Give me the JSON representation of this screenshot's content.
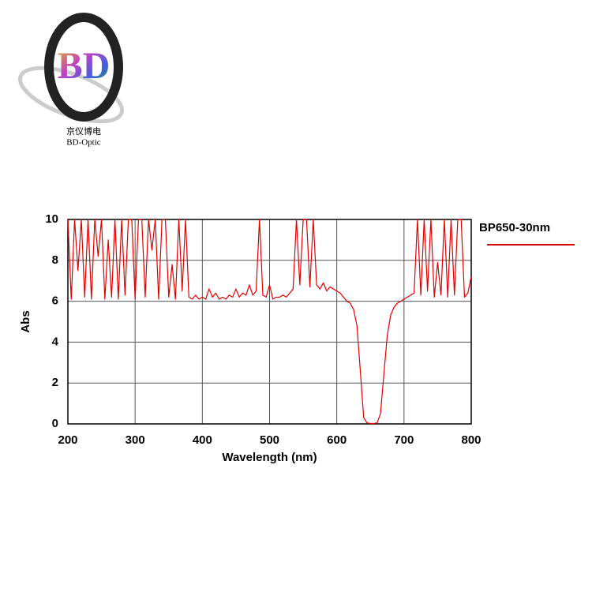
{
  "logo": {
    "mark": "BD",
    "name_cn": "京仪博电",
    "name_en": "BD-Optic"
  },
  "chart_data": {
    "type": "line",
    "x_label": "Wavelength (nm)",
    "y_label": "Abs",
    "xlim": [
      200,
      800
    ],
    "xticks": [
      200,
      300,
      400,
      500,
      600,
      700,
      800
    ],
    "ylim": [
      0,
      10
    ],
    "yticks": [
      0,
      2,
      4,
      6,
      8,
      10
    ],
    "grid": true,
    "legend": "right",
    "x": [
      200,
      205,
      210,
      215,
      220,
      225,
      230,
      235,
      240,
      245,
      250,
      255,
      260,
      265,
      270,
      275,
      280,
      285,
      290,
      295,
      300,
      305,
      310,
      315,
      320,
      325,
      330,
      335,
      340,
      345,
      350,
      355,
      360,
      365,
      370,
      375,
      380,
      385,
      390,
      395,
      400,
      405,
      410,
      415,
      420,
      425,
      430,
      435,
      440,
      445,
      450,
      455,
      460,
      465,
      470,
      475,
      480,
      485,
      490,
      495,
      500,
      505,
      510,
      515,
      520,
      525,
      530,
      535,
      540,
      545,
      550,
      555,
      560,
      565,
      570,
      575,
      580,
      585,
      590,
      595,
      600,
      605,
      610,
      615,
      620,
      625,
      630,
      635,
      640,
      645,
      650,
      655,
      660,
      665,
      670,
      675,
      680,
      685,
      690,
      695,
      700,
      705,
      710,
      715,
      720,
      725,
      730,
      735,
      740,
      745,
      750,
      755,
      760,
      765,
      770,
      775,
      780,
      785,
      790,
      795,
      800
    ],
    "series": [
      {
        "name": "BP650-30nm",
        "color": "#e00000",
        "values": [
          10,
          6.1,
          10,
          7.5,
          10,
          6.2,
          10,
          6.1,
          10,
          8.2,
          10,
          6.1,
          9.0,
          6.2,
          10,
          6.1,
          10,
          6.3,
          10,
          10,
          6.1,
          10,
          10,
          6.2,
          10,
          8.5,
          10,
          6.1,
          10,
          10,
          6.2,
          7.8,
          6.1,
          10,
          6.5,
          10,
          6.2,
          6.1,
          6.3,
          6.1,
          6.2,
          6.1,
          6.6,
          6.2,
          6.4,
          6.1,
          6.2,
          6.1,
          6.3,
          6.2,
          6.6,
          6.2,
          6.4,
          6.3,
          6.8,
          6.3,
          6.5,
          10,
          6.3,
          6.2,
          6.8,
          6.1,
          6.2,
          6.2,
          6.3,
          6.2,
          6.4,
          6.6,
          10,
          6.8,
          10,
          10,
          6.7,
          10,
          6.8,
          6.6,
          6.9,
          6.5,
          6.7,
          6.6,
          6.5,
          6.4,
          6.2,
          6.0,
          5.9,
          5.6,
          4.8,
          2.6,
          0.3,
          0.05,
          0.02,
          0.02,
          0.05,
          0.5,
          2.4,
          4.3,
          5.3,
          5.7,
          5.9,
          6.0,
          6.1,
          6.2,
          6.3,
          6.4,
          10,
          6.3,
          10,
          6.5,
          10,
          6.2,
          7.9,
          6.3,
          10,
          6.2,
          10,
          6.3,
          10,
          10,
          6.2,
          6.4,
          7.2
        ]
      }
    ]
  }
}
